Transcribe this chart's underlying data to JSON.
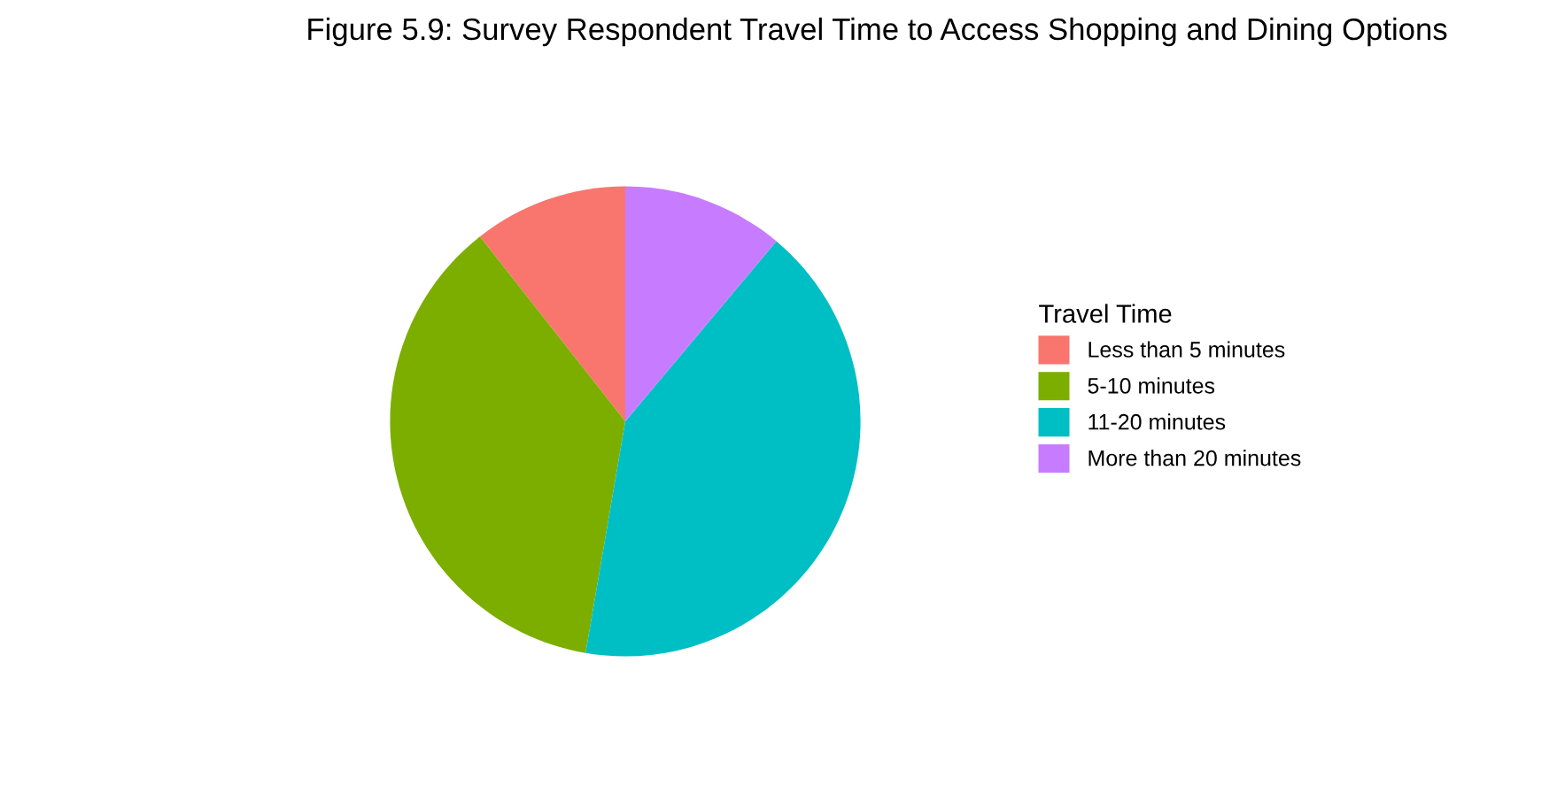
{
  "chart_data": {
    "type": "pie",
    "title": "Figure 5.9: Survey Respondent Travel Time to Access Shopping and Dining Options",
    "legend_title": "Travel Time",
    "categories": [
      "Less than 5 minutes",
      "5-10 minutes",
      "11-20 minutes",
      "More than 20 minutes"
    ],
    "values": [
      10.6,
      36.7,
      41.6,
      11.1
    ],
    "colors": [
      "#f8766d",
      "#7cae00",
      "#00bfc4",
      "#c77cff"
    ],
    "legend": "right"
  }
}
